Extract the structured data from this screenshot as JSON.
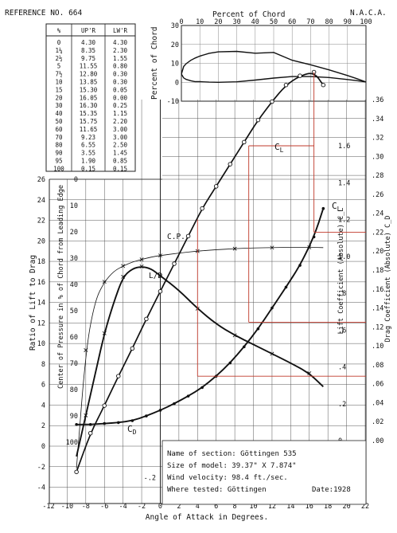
{
  "header": {
    "reference": "REFERENCE NO. 664",
    "org": "N.A.C.A."
  },
  "ordinates_table": {
    "headers": [
      "%",
      "UP'R",
      "LW'R"
    ],
    "rows": [
      [
        "0",
        "4.30",
        "4.30"
      ],
      [
        "1¼",
        "8.35",
        "2.30"
      ],
      [
        "2½",
        "9.75",
        "1.55"
      ],
      [
        "5",
        "11.55",
        "0.80"
      ],
      [
        "7½",
        "12.80",
        "0.30"
      ],
      [
        "10",
        "13.85",
        "0.30"
      ],
      [
        "15",
        "15.30",
        "0.05"
      ],
      [
        "20",
        "16.05",
        "0.00"
      ],
      [
        "30",
        "16.30",
        "0.25"
      ],
      [
        "40",
        "15.35",
        "1.15"
      ],
      [
        "50",
        "15.75",
        "2.20"
      ],
      [
        "60",
        "11.65",
        "3.00"
      ],
      [
        "70",
        "9.23",
        "3.00"
      ],
      [
        "80",
        "6.55",
        "2.50"
      ],
      [
        "90",
        "3.55",
        "1.45"
      ],
      [
        "95",
        "1.90",
        "0.85"
      ],
      [
        "100",
        "0.15",
        "0.15"
      ]
    ]
  },
  "info_box": {
    "lines": [
      "Name of section: Göttingen 535",
      "Size of model: 39.37\" X 7.874\"",
      "Wind velocity: 98.4 ft./sec.",
      "Where tested: Göttingen"
    ],
    "date": "Date:1928"
  },
  "chart_data": [
    {
      "type": "line",
      "title": "Percent of Chord",
      "xlabel": "Percent of Chord",
      "ylabel": "Percent of Chord",
      "xlim": [
        0,
        100
      ],
      "ylim": [
        -10,
        30
      ],
      "x_ticks": [
        "0",
        "10",
        "20",
        "30",
        "40",
        "50",
        "60",
        "70",
        "80",
        "90",
        "100"
      ],
      "y_ticks": [
        "30",
        "20",
        "10",
        "0",
        "-10"
      ],
      "series": [
        {
          "x": [
            0,
            1.25,
            2.5,
            5,
            7.5,
            10,
            15,
            20,
            30,
            40,
            50,
            60,
            70,
            80,
            90,
            95,
            100
          ],
          "values": [
            4.3,
            8.35,
            9.75,
            11.55,
            12.8,
            13.85,
            15.3,
            16.05,
            16.3,
            15.35,
            15.75,
            11.65,
            9.23,
            6.55,
            3.55,
            1.9,
            0.15
          ]
        },
        {
          "x": [
            0,
            1.25,
            2.5,
            5,
            7.5,
            10,
            15,
            20,
            30,
            40,
            50,
            60,
            70,
            80,
            90,
            95,
            100
          ],
          "values": [
            4.3,
            2.3,
            1.55,
            0.8,
            0.3,
            0.3,
            0.05,
            0.0,
            0.25,
            1.15,
            2.2,
            3.0,
            3.0,
            2.5,
            1.45,
            0.85,
            0.15
          ]
        }
      ]
    },
    {
      "type": "line",
      "xlabel": "Angle of Attack in Degrees.",
      "xlim": [
        -12,
        22
      ],
      "x_ticks": [
        "-12",
        "-10",
        "-8",
        "-6",
        "-4",
        "-2",
        "0",
        "2",
        "4",
        "6",
        "8",
        "10",
        "12",
        "14",
        "16",
        "18",
        "20",
        "22"
      ],
      "y_axes": {
        "ld": {
          "label": "Ratio of Lift to Drag",
          "ticks": [
            "26",
            "24",
            "22",
            "20",
            "18",
            "16",
            "14",
            "12",
            "10",
            "8",
            "6",
            "4",
            "2",
            "0",
            "-2",
            "-4"
          ]
        },
        "cp": {
          "label": "Center of Pressure in % of Chord from Leading Edge",
          "ticks": [
            "0",
            "10",
            "20",
            "30",
            "40",
            "50",
            "60",
            "70",
            "80",
            "90",
            "100"
          ]
        },
        "cl": {
          "label": "Lift Coefficient (Absolute) C_L",
          "ticks": [
            "1.6",
            "1.4",
            "1.2",
            "1.0",
            ".8",
            ".6",
            ".4",
            ".2",
            "0",
            "-.2"
          ]
        },
        "cd": {
          "label": "Drag Coefficient (Absolute) C_D",
          "ticks": [
            ".36",
            ".34",
            ".32",
            ".30",
            ".28",
            ".26",
            ".24",
            ".22",
            ".20",
            ".18",
            ".16",
            ".14",
            ".12",
            ".10",
            ".08",
            ".06",
            ".04",
            ".02",
            ".00"
          ]
        }
      },
      "series": [
        {
          "name": "C_L",
          "x": [
            -9,
            -7.5,
            -6,
            -4.5,
            -3,
            -1.5,
            0,
            1.5,
            3,
            4.5,
            6,
            7.5,
            9,
            10.5,
            12,
            13.5,
            15,
            16.5,
            17.5
          ],
          "values": [
            -0.17,
            0.04,
            0.19,
            0.35,
            0.5,
            0.66,
            0.81,
            0.96,
            1.11,
            1.26,
            1.38,
            1.5,
            1.62,
            1.74,
            1.84,
            1.93,
            1.98,
            2.0,
            1.93
          ]
        },
        {
          "name": "C_D",
          "x": [
            -9,
            -7.5,
            -6,
            -4.5,
            -3,
            -1.5,
            0,
            1.5,
            3,
            4.5,
            6,
            7.5,
            9,
            10.5,
            12,
            13.5,
            15,
            16.5,
            17.5
          ],
          "values": [
            0.017,
            0.017,
            0.018,
            0.019,
            0.021,
            0.026,
            0.032,
            0.039,
            0.047,
            0.056,
            0.068,
            0.082,
            0.099,
            0.118,
            0.14,
            0.162,
            0.185,
            0.215,
            0.245
          ]
        },
        {
          "name": "L/D",
          "x": [
            -9,
            -8,
            -7,
            -6,
            -5,
            -4,
            -3,
            -2,
            -1,
            0,
            2,
            4,
            6,
            8,
            10,
            12,
            14,
            16,
            17.5
          ],
          "values": [
            -1,
            3,
            7,
            11,
            14,
            16.5,
            17.3,
            17.5,
            17.3,
            16.6,
            15.2,
            13.4,
            11.9,
            10.8,
            9.9,
            9.0,
            8.1,
            7.1,
            5.8
          ]
        },
        {
          "name": "C.P.",
          "x": [
            -9,
            -8,
            -7,
            -6,
            -5,
            -4,
            -3,
            -2,
            -1,
            0,
            2,
            4,
            6,
            8,
            10,
            12,
            14,
            16,
            17.5
          ],
          "values": [
            110,
            65,
            46,
            39,
            35,
            33,
            31.5,
            30.5,
            29.6,
            29,
            28.1,
            27.3,
            26.8,
            26.4,
            26.1,
            26,
            25.9,
            25.9,
            26
          ]
        }
      ]
    }
  ],
  "labels": {
    "cl": "C",
    "cl_sub": "L",
    "cd": "C",
    "cd_sub": "D",
    "ld": "L/D",
    "cp": "C.P."
  }
}
